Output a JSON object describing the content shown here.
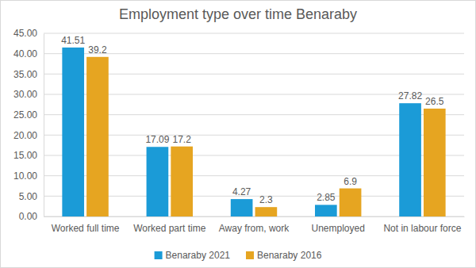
{
  "chart_data": {
    "type": "bar",
    "title": "Employment type over time Benaraby",
    "categories": [
      "Worked full time",
      "Worked part time",
      "Away from, work",
      "Unemployed",
      "Not in labour force"
    ],
    "series": [
      {
        "name": "Benaraby 2021",
        "color": "#1b9bd7",
        "values": [
          41.51,
          17.09,
          4.27,
          2.85,
          27.82
        ]
      },
      {
        "name": "Benaraby 2016",
        "color": "#e6a521",
        "values": [
          39.2,
          17.2,
          2.3,
          6.9,
          26.5
        ]
      }
    ],
    "ylim": [
      0,
      45
    ],
    "yticks": [
      {
        "value": 0,
        "label": "0.00"
      },
      {
        "value": 5,
        "label": "5.00"
      },
      {
        "value": 10,
        "label": "10.00"
      },
      {
        "value": 15,
        "label": "15.00"
      },
      {
        "value": 20,
        "label": "20.00"
      },
      {
        "value": 25,
        "label": "25.00"
      },
      {
        "value": 30,
        "label": "30.00"
      },
      {
        "value": 35,
        "label": "35.00"
      },
      {
        "value": 40,
        "label": "40.00"
      },
      {
        "value": 45,
        "label": "45.00"
      }
    ],
    "grid": true,
    "data_labels": true,
    "legend": "bottom"
  }
}
